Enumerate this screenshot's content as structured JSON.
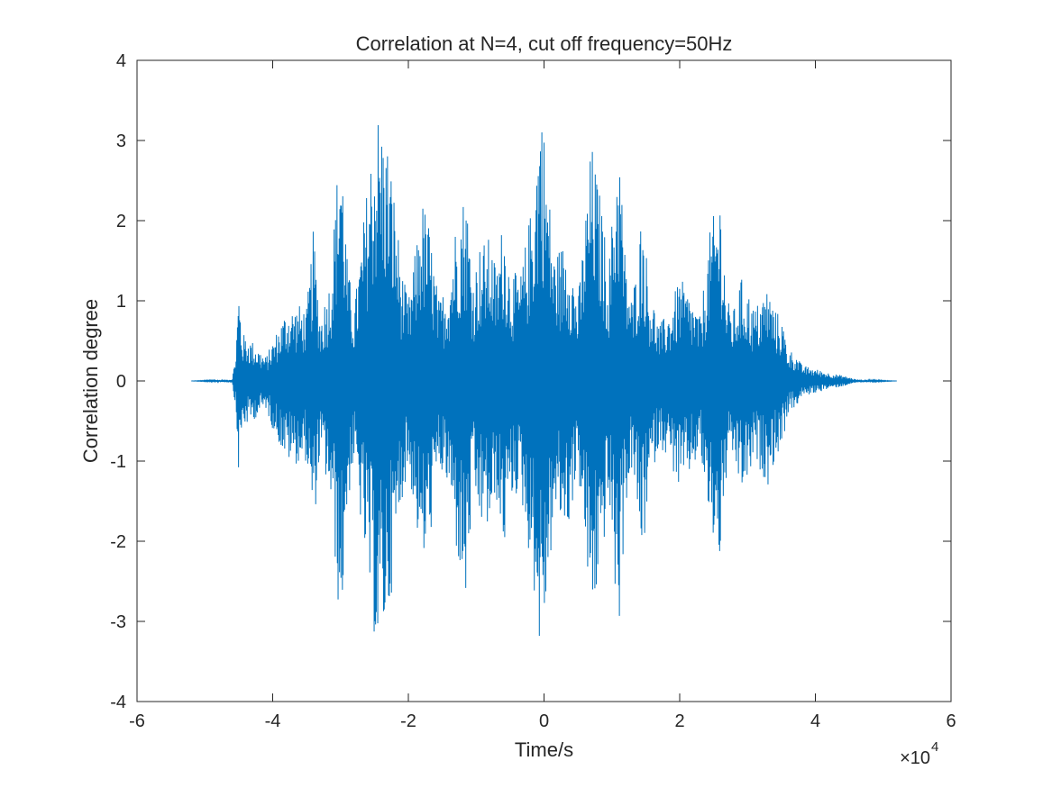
{
  "chart_data": {
    "type": "line",
    "title": "Correlation at N=4, cut off frequency=50Hz",
    "xlabel": "Time/s",
    "ylabel": "Correlation degree",
    "x_exponent_label": "×10",
    "x_exponent_power": "4",
    "xlim": [
      -6,
      6
    ],
    "ylim": [
      -4,
      4
    ],
    "xticks": [
      -6,
      -4,
      -2,
      0,
      2,
      4,
      6
    ],
    "xtick_labels": [
      "-6",
      "-4",
      "-2",
      "0",
      "2",
      "4",
      "6"
    ],
    "yticks": [
      -4,
      -3,
      -2,
      -1,
      0,
      1,
      2,
      3,
      4
    ],
    "ytick_labels": [
      "-4",
      "-3",
      "-2",
      "-1",
      "0",
      "1",
      "2",
      "3",
      "4"
    ],
    "x_range": [
      -5.2,
      5.2
    ],
    "series": [
      {
        "color": "#0072BD",
        "envelope_upper": [
          [
            -5.2,
            0.0
          ],
          [
            -4.6,
            0.02
          ],
          [
            -4.55,
            0.3
          ],
          [
            -4.5,
            1.2
          ],
          [
            -4.45,
            0.6
          ],
          [
            -4.3,
            0.5
          ],
          [
            -4.1,
            0.3
          ],
          [
            -4.0,
            0.5
          ],
          [
            -3.8,
            0.9
          ],
          [
            -3.6,
            0.95
          ],
          [
            -3.5,
            0.9
          ],
          [
            -3.4,
            1.9
          ],
          [
            -3.3,
            0.8
          ],
          [
            -3.15,
            1.3
          ],
          [
            -3.05,
            2.6
          ],
          [
            -3.0,
            3.35
          ],
          [
            -2.9,
            1.5
          ],
          [
            -2.8,
            0.9
          ],
          [
            -2.7,
            1.7
          ],
          [
            -2.55,
            2.9
          ],
          [
            -2.45,
            3.4
          ],
          [
            -2.3,
            3.0
          ],
          [
            -2.2,
            2.3
          ],
          [
            -2.1,
            1.4
          ],
          [
            -2.0,
            1.0
          ],
          [
            -1.9,
            1.6
          ],
          [
            -1.8,
            2.3
          ],
          [
            -1.7,
            2.0
          ],
          [
            -1.55,
            1.0
          ],
          [
            -1.4,
            1.3
          ],
          [
            -1.3,
            2.0
          ],
          [
            -1.15,
            2.45
          ],
          [
            -1.05,
            1.3
          ],
          [
            -0.95,
            1.7
          ],
          [
            -0.8,
            1.8
          ],
          [
            -0.7,
            1.4
          ],
          [
            -0.6,
            2.1
          ],
          [
            -0.5,
            1.4
          ],
          [
            -0.35,
            1.3
          ],
          [
            -0.15,
            2.4
          ],
          [
            -0.05,
            3.7
          ],
          [
            0.05,
            2.6
          ],
          [
            0.15,
            1.6
          ],
          [
            0.35,
            1.8
          ],
          [
            0.5,
            1.0
          ],
          [
            0.7,
            3.0
          ],
          [
            0.85,
            2.2
          ],
          [
            0.95,
            1.4
          ],
          [
            1.1,
            3.2
          ],
          [
            1.2,
            1.5
          ],
          [
            1.3,
            1.0
          ],
          [
            1.45,
            2.2
          ],
          [
            1.55,
            1.2
          ],
          [
            1.7,
            0.7
          ],
          [
            1.85,
            0.9
          ],
          [
            2.0,
            1.3
          ],
          [
            2.2,
            1.0
          ],
          [
            2.3,
            0.8
          ],
          [
            2.45,
            1.9
          ],
          [
            2.6,
            2.4
          ],
          [
            2.7,
            1.0
          ],
          [
            2.8,
            0.9
          ],
          [
            2.9,
            1.3
          ],
          [
            3.0,
            1.15
          ],
          [
            3.1,
            0.9
          ],
          [
            3.3,
            1.2
          ],
          [
            3.4,
            0.9
          ],
          [
            3.5,
            0.8
          ],
          [
            3.6,
            0.4
          ],
          [
            3.7,
            0.35
          ],
          [
            3.8,
            0.2
          ],
          [
            4.0,
            0.15
          ],
          [
            4.2,
            0.1
          ],
          [
            4.4,
            0.07
          ],
          [
            4.6,
            0.02
          ],
          [
            5.2,
            0.0
          ]
        ],
        "envelope_lower": [
          [
            -5.2,
            0.0
          ],
          [
            -4.6,
            -0.02
          ],
          [
            -4.55,
            -0.3
          ],
          [
            -4.5,
            -1.2
          ],
          [
            -4.45,
            -0.6
          ],
          [
            -4.3,
            -0.5
          ],
          [
            -4.1,
            -0.35
          ],
          [
            -4.0,
            -0.6
          ],
          [
            -3.8,
            -1.0
          ],
          [
            -3.6,
            -1.05
          ],
          [
            -3.5,
            -1.0
          ],
          [
            -3.4,
            -1.9
          ],
          [
            -3.3,
            -0.9
          ],
          [
            -3.15,
            -1.5
          ],
          [
            -3.05,
            -2.6
          ],
          [
            -3.0,
            -3.3
          ],
          [
            -2.9,
            -1.6
          ],
          [
            -2.8,
            -1.0
          ],
          [
            -2.7,
            -1.8
          ],
          [
            -2.55,
            -2.9
          ],
          [
            -2.45,
            -3.5
          ],
          [
            -2.3,
            -3.0
          ],
          [
            -2.2,
            -2.3
          ],
          [
            -2.1,
            -1.5
          ],
          [
            -2.0,
            -1.1
          ],
          [
            -1.9,
            -1.7
          ],
          [
            -1.8,
            -2.4
          ],
          [
            -1.7,
            -2.1
          ],
          [
            -1.55,
            -1.1
          ],
          [
            -1.4,
            -1.4
          ],
          [
            -1.3,
            -2.1
          ],
          [
            -1.15,
            -2.9
          ],
          [
            -1.05,
            -1.4
          ],
          [
            -0.95,
            -1.8
          ],
          [
            -0.8,
            -1.9
          ],
          [
            -0.7,
            -1.5
          ],
          [
            -0.6,
            -2.2
          ],
          [
            -0.5,
            -1.5
          ],
          [
            -0.35,
            -1.4
          ],
          [
            -0.15,
            -2.6
          ],
          [
            -0.05,
            -3.55
          ],
          [
            0.05,
            -2.7
          ],
          [
            0.15,
            -1.7
          ],
          [
            0.35,
            -1.9
          ],
          [
            0.5,
            -1.1
          ],
          [
            0.7,
            -3.1
          ],
          [
            0.85,
            -2.3
          ],
          [
            0.95,
            -1.5
          ],
          [
            1.1,
            -3.3
          ],
          [
            1.2,
            -1.6
          ],
          [
            1.3,
            -1.1
          ],
          [
            1.45,
            -2.3
          ],
          [
            1.55,
            -1.3
          ],
          [
            1.7,
            -0.8
          ],
          [
            1.85,
            -1.0
          ],
          [
            2.0,
            -1.4
          ],
          [
            2.2,
            -1.1
          ],
          [
            2.3,
            -0.9
          ],
          [
            2.45,
            -1.9
          ],
          [
            2.6,
            -2.3
          ],
          [
            2.7,
            -1.1
          ],
          [
            2.8,
            -1.0
          ],
          [
            2.9,
            -1.4
          ],
          [
            3.0,
            -1.3
          ],
          [
            3.1,
            -1.0
          ],
          [
            3.3,
            -1.3
          ],
          [
            3.4,
            -1.0
          ],
          [
            3.5,
            -0.85
          ],
          [
            3.6,
            -0.4
          ],
          [
            3.7,
            -0.35
          ],
          [
            3.8,
            -0.2
          ],
          [
            4.0,
            -0.15
          ],
          [
            4.2,
            -0.1
          ],
          [
            4.4,
            -0.07
          ],
          [
            4.6,
            -0.02
          ],
          [
            5.2,
            0.0
          ]
        ]
      }
    ]
  }
}
